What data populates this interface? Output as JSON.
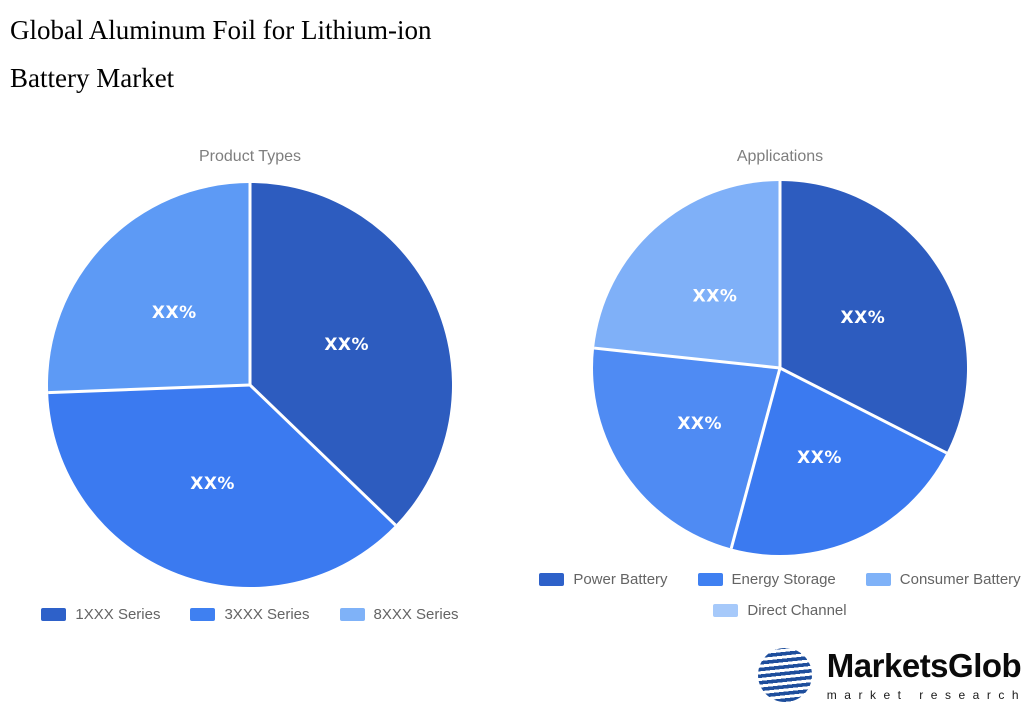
{
  "page": {
    "title_line1": "Global Aluminum Foil for Lithium-ion",
    "title_line2": "Battery Market",
    "background": "#ffffff"
  },
  "chart_data": [
    {
      "type": "pie",
      "title": "Product Types",
      "categories": [
        "1XXX Series",
        "3XXX Series",
        "8XXX Series"
      ],
      "values": [
        37.2,
        37.2,
        25.6
      ],
      "slice_labels": [
        "XX%",
        "XX%",
        "XX%"
      ],
      "colors": [
        "#2d5cbf",
        "#3b7af0",
        "#5d9af5"
      ],
      "legend_colors": [
        "#2e61c9",
        "#3f80f1",
        "#7fb2f8"
      ],
      "start_angle_deg": 0,
      "direction": "clockwise",
      "legend_position": "bottom",
      "legend_rows": [
        [
          0,
          1,
          2
        ]
      ],
      "label_text_color": "#ffffff"
    },
    {
      "type": "pie",
      "title": "Applications",
      "categories": [
        "Power Battery",
        "Energy Storage",
        "Consumer Battery",
        "Direct Channel"
      ],
      "values": [
        32.5,
        21.7,
        22.5,
        23.3
      ],
      "slice_labels": [
        "XX%",
        "XX%",
        "XX%",
        "XX%"
      ],
      "colors": [
        "#2d5cbf",
        "#3b7af0",
        "#4f8bf3",
        "#7fb0f8"
      ],
      "legend_colors": [
        "#2e61c9",
        "#3f80f1",
        "#7fb2f8",
        "#a6c9fa"
      ],
      "start_angle_deg": 0,
      "direction": "clockwise",
      "legend_position": "bottom",
      "legend_rows": [
        [
          0,
          1,
          2
        ],
        [
          3
        ]
      ],
      "label_text_color": "#ffffff"
    }
  ],
  "logo": {
    "brand": "MarketsGlob",
    "tagline": "market research",
    "globe_color": "#1e4e9c"
  }
}
